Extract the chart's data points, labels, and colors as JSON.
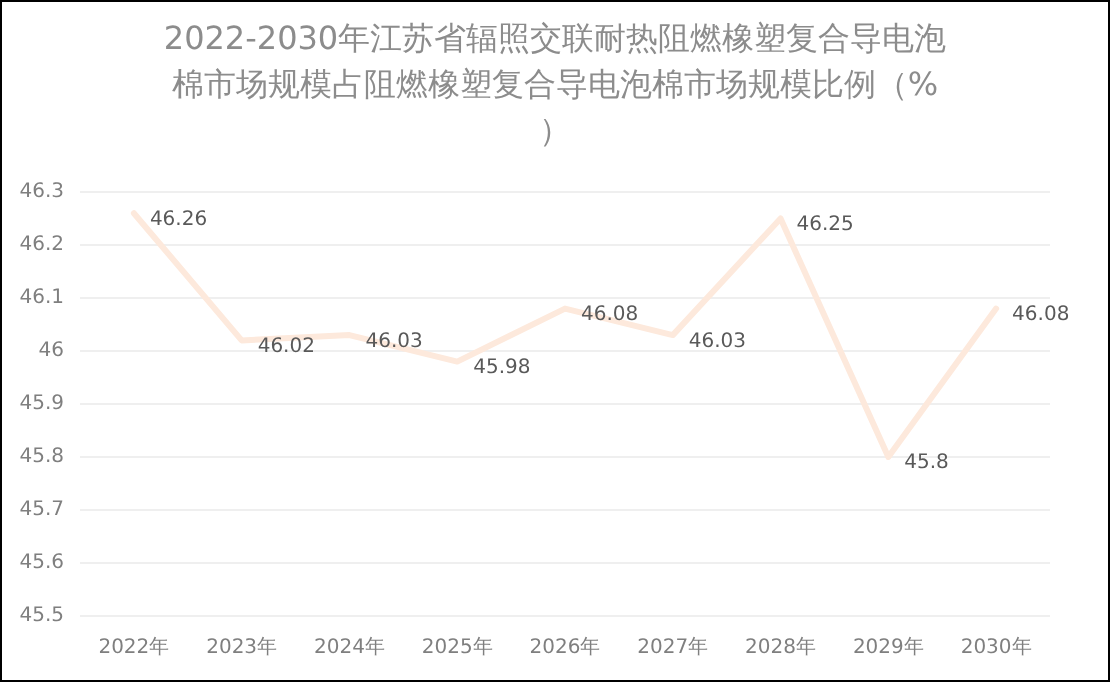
{
  "chart_data": {
    "type": "line",
    "title": "2022-2030年江苏省辐照交联耐热阻燃橡塑复合导电泡棉市场规模占阻燃橡塑复合导电泡棉市场规模比例（%）",
    "categories": [
      "2022年",
      "2023年",
      "2024年",
      "2025年",
      "2026年",
      "2027年",
      "2028年",
      "2029年",
      "2030年"
    ],
    "series": [
      {
        "color": "#fde9dc",
        "values": [
          46.26,
          46.02,
          46.03,
          45.98,
          46.08,
          46.03,
          46.25,
          45.8,
          46.08
        ]
      }
    ],
    "ylim": [
      45.5,
      46.3
    ],
    "yticks": [
      45.5,
      45.6,
      45.7,
      45.8,
      45.9,
      46,
      46.1,
      46.2,
      46.3
    ],
    "grid": "y",
    "data_labels": true,
    "marker": "none",
    "line_style": "solid"
  }
}
